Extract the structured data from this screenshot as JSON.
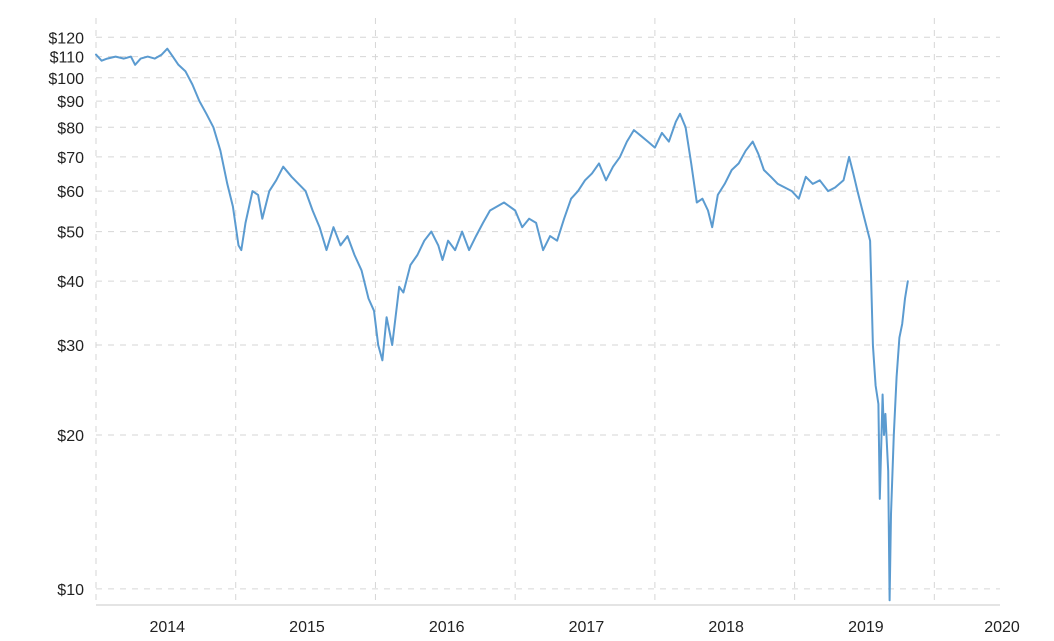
{
  "chart_data": {
    "type": "line",
    "title": "",
    "xlabel": "",
    "ylabel": "",
    "y_scale": "log",
    "ylim": [
      9.3,
      124
    ],
    "xlim": [
      2013.68,
      2020.15
    ],
    "grid": true,
    "legend": "none",
    "y_ticks": [
      {
        "value": 120,
        "label": "$120"
      },
      {
        "value": 110,
        "label": "$110"
      },
      {
        "value": 100,
        "label": "$100"
      },
      {
        "value": 90,
        "label": "$90"
      },
      {
        "value": 80,
        "label": "$80"
      },
      {
        "value": 70,
        "label": "$70"
      },
      {
        "value": 60,
        "label": "$60"
      },
      {
        "value": 50,
        "label": "$50"
      },
      {
        "value": 40,
        "label": "$40"
      },
      {
        "value": 30,
        "label": "$30"
      },
      {
        "value": 20,
        "label": "$20"
      },
      {
        "value": 10,
        "label": "$10"
      }
    ],
    "x_gridlines": [
      2014.68,
      2015.68,
      2016.68,
      2017.68,
      2018.68,
      2019.68
    ],
    "x_ticks": [
      {
        "value": 2014.19,
        "label": "2014"
      },
      {
        "value": 2015.19,
        "label": "2015"
      },
      {
        "value": 2016.19,
        "label": "2016"
      },
      {
        "value": 2017.19,
        "label": "2017"
      },
      {
        "value": 2018.19,
        "label": "2018"
      },
      {
        "value": 2019.19,
        "label": "2019"
      },
      {
        "value": 2020.19,
        "label": "2020"
      }
    ],
    "series": [
      {
        "color": "#5b9bd0",
        "points": [
          [
            2013.68,
            111
          ],
          [
            2013.72,
            108
          ],
          [
            2013.76,
            109
          ],
          [
            2013.82,
            110
          ],
          [
            2013.88,
            109
          ],
          [
            2013.93,
            110
          ],
          [
            2013.96,
            106
          ],
          [
            2014.0,
            109
          ],
          [
            2014.05,
            110
          ],
          [
            2014.1,
            109
          ],
          [
            2014.15,
            111
          ],
          [
            2014.19,
            114
          ],
          [
            2014.23,
            110
          ],
          [
            2014.27,
            106
          ],
          [
            2014.32,
            103
          ],
          [
            2014.37,
            97
          ],
          [
            2014.42,
            90
          ],
          [
            2014.47,
            85
          ],
          [
            2014.52,
            80
          ],
          [
            2014.57,
            72
          ],
          [
            2014.62,
            62
          ],
          [
            2014.66,
            56
          ],
          [
            2014.7,
            47
          ],
          [
            2014.72,
            46
          ],
          [
            2014.75,
            52
          ],
          [
            2014.8,
            60
          ],
          [
            2014.84,
            59
          ],
          [
            2014.87,
            53
          ],
          [
            2014.92,
            60
          ],
          [
            2014.97,
            63
          ],
          [
            2015.02,
            67
          ],
          [
            2015.08,
            64
          ],
          [
            2015.13,
            62
          ],
          [
            2015.18,
            60
          ],
          [
            2015.23,
            55
          ],
          [
            2015.28,
            51
          ],
          [
            2015.33,
            46
          ],
          [
            2015.38,
            51
          ],
          [
            2015.43,
            47
          ],
          [
            2015.48,
            49
          ],
          [
            2015.53,
            45
          ],
          [
            2015.58,
            42
          ],
          [
            2015.63,
            37
          ],
          [
            2015.67,
            35
          ],
          [
            2015.7,
            30
          ],
          [
            2015.73,
            28
          ],
          [
            2015.76,
            34
          ],
          [
            2015.8,
            30
          ],
          [
            2015.85,
            39
          ],
          [
            2015.88,
            38
          ],
          [
            2015.93,
            43
          ],
          [
            2015.98,
            45
          ],
          [
            2016.03,
            48
          ],
          [
            2016.08,
            50
          ],
          [
            2016.13,
            47
          ],
          [
            2016.16,
            44
          ],
          [
            2016.2,
            48
          ],
          [
            2016.25,
            46
          ],
          [
            2016.3,
            50
          ],
          [
            2016.35,
            46
          ],
          [
            2016.4,
            49
          ],
          [
            2016.45,
            52
          ],
          [
            2016.5,
            55
          ],
          [
            2016.55,
            56
          ],
          [
            2016.6,
            57
          ],
          [
            2016.68,
            55
          ],
          [
            2016.73,
            51
          ],
          [
            2016.78,
            53
          ],
          [
            2016.83,
            52
          ],
          [
            2016.88,
            46
          ],
          [
            2016.93,
            49
          ],
          [
            2016.98,
            48
          ],
          [
            2017.03,
            53
          ],
          [
            2017.08,
            58
          ],
          [
            2017.13,
            60
          ],
          [
            2017.18,
            63
          ],
          [
            2017.23,
            65
          ],
          [
            2017.28,
            68
          ],
          [
            2017.33,
            63
          ],
          [
            2017.38,
            67
          ],
          [
            2017.43,
            70
          ],
          [
            2017.48,
            75
          ],
          [
            2017.53,
            79
          ],
          [
            2017.58,
            77
          ],
          [
            2017.63,
            75
          ],
          [
            2017.68,
            73
          ],
          [
            2017.73,
            78
          ],
          [
            2017.78,
            75
          ],
          [
            2017.83,
            82
          ],
          [
            2017.86,
            85
          ],
          [
            2017.9,
            80
          ],
          [
            2017.94,
            68
          ],
          [
            2017.98,
            57
          ],
          [
            2018.02,
            58
          ],
          [
            2018.06,
            55
          ],
          [
            2018.09,
            51
          ],
          [
            2018.13,
            59
          ],
          [
            2018.18,
            62
          ],
          [
            2018.23,
            66
          ],
          [
            2018.28,
            68
          ],
          [
            2018.33,
            72
          ],
          [
            2018.38,
            75
          ],
          [
            2018.42,
            71
          ],
          [
            2018.46,
            66
          ],
          [
            2018.51,
            64
          ],
          [
            2018.56,
            62
          ],
          [
            2018.61,
            61
          ],
          [
            2018.66,
            60
          ],
          [
            2018.71,
            58
          ],
          [
            2018.76,
            64
          ],
          [
            2018.81,
            62
          ],
          [
            2018.86,
            63
          ],
          [
            2018.92,
            60
          ],
          [
            2018.97,
            61
          ],
          [
            2019.03,
            63
          ],
          [
            2019.07,
            70
          ],
          [
            2019.1,
            65
          ],
          [
            2019.13,
            60
          ],
          [
            2019.18,
            53
          ],
          [
            2019.22,
            48
          ],
          [
            2019.24,
            30
          ],
          [
            2019.26,
            25
          ],
          [
            2019.28,
            23
          ],
          [
            2019.29,
            15
          ],
          [
            2019.31,
            24
          ],
          [
            2019.32,
            20
          ],
          [
            2019.33,
            22
          ],
          [
            2019.35,
            17
          ],
          [
            2019.36,
            9.5
          ],
          [
            2019.37,
            14
          ],
          [
            2019.39,
            20
          ],
          [
            2019.41,
            26
          ],
          [
            2019.43,
            31
          ],
          [
            2019.45,
            33
          ],
          [
            2019.47,
            37
          ],
          [
            2019.49,
            40
          ]
        ]
      }
    ]
  }
}
